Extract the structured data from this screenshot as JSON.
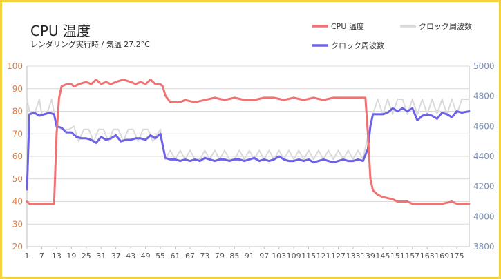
{
  "chart_data": {
    "type": "line",
    "title": "CPU 温度",
    "subtitle": "レンダリング実行時 / 気温 27.2°C",
    "x_ticks": [
      1,
      7,
      13,
      19,
      25,
      31,
      37,
      43,
      49,
      55,
      61,
      67,
      73,
      79,
      85,
      91,
      97,
      103,
      109,
      115,
      121,
      127,
      133,
      139,
      145,
      151,
      157,
      163,
      169,
      175
    ],
    "x_range": [
      1,
      180
    ],
    "y_left": {
      "min": 20,
      "max": 100,
      "ticks": [
        20,
        30,
        40,
        50,
        60,
        70,
        80,
        90,
        100
      ]
    },
    "y_right": {
      "min": 3800,
      "max": 5000,
      "ticks": [
        3800,
        4000,
        4200,
        4400,
        4600,
        4800,
        5000
      ]
    },
    "grid": true,
    "legend": {
      "placement": "top-right",
      "entries": [
        "CPU 温度",
        "クロック周波数",
        "クロック周波数"
      ]
    },
    "series": [
      {
        "name": "CPU 温度",
        "axis": "left",
        "color": "#f07272",
        "points": [
          [
            1,
            40
          ],
          [
            2,
            39
          ],
          [
            12,
            39
          ],
          [
            13,
            70
          ],
          [
            14,
            86
          ],
          [
            15,
            91
          ],
          [
            17,
            92
          ],
          [
            19,
            92
          ],
          [
            20,
            91
          ],
          [
            22,
            92
          ],
          [
            25,
            93
          ],
          [
            27,
            92
          ],
          [
            29,
            94
          ],
          [
            31,
            92
          ],
          [
            33,
            93
          ],
          [
            35,
            92
          ],
          [
            37,
            93
          ],
          [
            40,
            94
          ],
          [
            43,
            93
          ],
          [
            45,
            92
          ],
          [
            47,
            93
          ],
          [
            49,
            92
          ],
          [
            51,
            94
          ],
          [
            53,
            92
          ],
          [
            55,
            92
          ],
          [
            56,
            91
          ],
          [
            57,
            87
          ],
          [
            59,
            84
          ],
          [
            63,
            84
          ],
          [
            65,
            85
          ],
          [
            69,
            84
          ],
          [
            73,
            85
          ],
          [
            77,
            86
          ],
          [
            81,
            85
          ],
          [
            85,
            86
          ],
          [
            89,
            85
          ],
          [
            93,
            85
          ],
          [
            97,
            86
          ],
          [
            101,
            86
          ],
          [
            105,
            85
          ],
          [
            109,
            86
          ],
          [
            113,
            85
          ],
          [
            117,
            86
          ],
          [
            121,
            85
          ],
          [
            125,
            86
          ],
          [
            129,
            86
          ],
          [
            133,
            86
          ],
          [
            136,
            86
          ],
          [
            138,
            86
          ],
          [
            139,
            70
          ],
          [
            140,
            50
          ],
          [
            141,
            45
          ],
          [
            143,
            43
          ],
          [
            145,
            42
          ],
          [
            149,
            41
          ],
          [
            151,
            40
          ],
          [
            155,
            40
          ],
          [
            157,
            39
          ],
          [
            161,
            39
          ],
          [
            165,
            39
          ],
          [
            169,
            39
          ],
          [
            173,
            40
          ],
          [
            175,
            39
          ],
          [
            180,
            39
          ]
        ]
      },
      {
        "name": "クロック周波数",
        "axis": "right",
        "color": "#d9d9d9",
        "points": [
          [
            1,
            4780
          ],
          [
            2,
            4700
          ],
          [
            4,
            4680
          ],
          [
            6,
            4780
          ],
          [
            7,
            4680
          ],
          [
            9,
            4680
          ],
          [
            11,
            4780
          ],
          [
            13,
            4600
          ],
          [
            15,
            4580
          ],
          [
            18,
            4580
          ],
          [
            20,
            4600
          ],
          [
            22,
            4500
          ],
          [
            24,
            4580
          ],
          [
            26,
            4580
          ],
          [
            28,
            4500
          ],
          [
            30,
            4580
          ],
          [
            32,
            4580
          ],
          [
            34,
            4500
          ],
          [
            36,
            4580
          ],
          [
            38,
            4580
          ],
          [
            40,
            4500
          ],
          [
            42,
            4580
          ],
          [
            44,
            4580
          ],
          [
            46,
            4500
          ],
          [
            48,
            4580
          ],
          [
            50,
            4580
          ],
          [
            52,
            4500
          ],
          [
            55,
            4580
          ],
          [
            57,
            4380
          ],
          [
            59,
            4440
          ],
          [
            61,
            4380
          ],
          [
            63,
            4440
          ],
          [
            65,
            4380
          ],
          [
            67,
            4440
          ],
          [
            69,
            4380
          ],
          [
            71,
            4380
          ],
          [
            73,
            4440
          ],
          [
            75,
            4380
          ],
          [
            77,
            4440
          ],
          [
            79,
            4380
          ],
          [
            81,
            4440
          ],
          [
            83,
            4380
          ],
          [
            85,
            4380
          ],
          [
            87,
            4440
          ],
          [
            89,
            4380
          ],
          [
            91,
            4440
          ],
          [
            93,
            4380
          ],
          [
            95,
            4440
          ],
          [
            97,
            4380
          ],
          [
            99,
            4440
          ],
          [
            101,
            4380
          ],
          [
            103,
            4440
          ],
          [
            105,
            4380
          ],
          [
            107,
            4440
          ],
          [
            109,
            4380
          ],
          [
            111,
            4440
          ],
          [
            113,
            4380
          ],
          [
            115,
            4440
          ],
          [
            117,
            4380
          ],
          [
            119,
            4440
          ],
          [
            121,
            4380
          ],
          [
            123,
            4440
          ],
          [
            125,
            4380
          ],
          [
            127,
            4440
          ],
          [
            129,
            4380
          ],
          [
            131,
            4440
          ],
          [
            133,
            4380
          ],
          [
            135,
            4440
          ],
          [
            137,
            4380
          ],
          [
            139,
            4540
          ],
          [
            141,
            4680
          ],
          [
            143,
            4780
          ],
          [
            145,
            4680
          ],
          [
            147,
            4780
          ],
          [
            149,
            4680
          ],
          [
            151,
            4780
          ],
          [
            153,
            4780
          ],
          [
            155,
            4680
          ],
          [
            157,
            4780
          ],
          [
            159,
            4680
          ],
          [
            161,
            4780
          ],
          [
            163,
            4680
          ],
          [
            165,
            4780
          ],
          [
            167,
            4680
          ],
          [
            169,
            4780
          ],
          [
            171,
            4680
          ],
          [
            173,
            4780
          ],
          [
            175,
            4680
          ],
          [
            177,
            4780
          ],
          [
            180,
            4780
          ]
        ]
      },
      {
        "name": "クロック周波数",
        "axis": "right",
        "color": "#6b62e6",
        "points": [
          [
            1,
            4180
          ],
          [
            2,
            4680
          ],
          [
            4,
            4690
          ],
          [
            6,
            4670
          ],
          [
            8,
            4680
          ],
          [
            10,
            4690
          ],
          [
            12,
            4680
          ],
          [
            13,
            4600
          ],
          [
            15,
            4590
          ],
          [
            17,
            4560
          ],
          [
            19,
            4560
          ],
          [
            21,
            4530
          ],
          [
            23,
            4520
          ],
          [
            25,
            4520
          ],
          [
            27,
            4510
          ],
          [
            29,
            4490
          ],
          [
            31,
            4530
          ],
          [
            33,
            4510
          ],
          [
            35,
            4520
          ],
          [
            37,
            4540
          ],
          [
            39,
            4500
          ],
          [
            41,
            4510
          ],
          [
            43,
            4510
          ],
          [
            45,
            4520
          ],
          [
            47,
            4520
          ],
          [
            49,
            4510
          ],
          [
            51,
            4540
          ],
          [
            53,
            4520
          ],
          [
            55,
            4550
          ],
          [
            57,
            4390
          ],
          [
            59,
            4380
          ],
          [
            61,
            4380
          ],
          [
            63,
            4370
          ],
          [
            65,
            4380
          ],
          [
            67,
            4370
          ],
          [
            69,
            4380
          ],
          [
            71,
            4370
          ],
          [
            73,
            4390
          ],
          [
            75,
            4380
          ],
          [
            77,
            4370
          ],
          [
            79,
            4380
          ],
          [
            81,
            4380
          ],
          [
            83,
            4370
          ],
          [
            85,
            4380
          ],
          [
            87,
            4380
          ],
          [
            89,
            4370
          ],
          [
            91,
            4380
          ],
          [
            93,
            4390
          ],
          [
            95,
            4370
          ],
          [
            97,
            4380
          ],
          [
            99,
            4370
          ],
          [
            101,
            4380
          ],
          [
            103,
            4400
          ],
          [
            105,
            4380
          ],
          [
            107,
            4370
          ],
          [
            109,
            4370
          ],
          [
            111,
            4380
          ],
          [
            113,
            4370
          ],
          [
            115,
            4380
          ],
          [
            117,
            4360
          ],
          [
            119,
            4370
          ],
          [
            121,
            4380
          ],
          [
            123,
            4370
          ],
          [
            125,
            4360
          ],
          [
            127,
            4370
          ],
          [
            129,
            4380
          ],
          [
            131,
            4370
          ],
          [
            133,
            4370
          ],
          [
            135,
            4380
          ],
          [
            137,
            4370
          ],
          [
            139,
            4450
          ],
          [
            140,
            4600
          ],
          [
            141,
            4680
          ],
          [
            143,
            4680
          ],
          [
            145,
            4680
          ],
          [
            147,
            4690
          ],
          [
            149,
            4720
          ],
          [
            151,
            4700
          ],
          [
            153,
            4720
          ],
          [
            155,
            4700
          ],
          [
            157,
            4720
          ],
          [
            159,
            4640
          ],
          [
            161,
            4670
          ],
          [
            163,
            4680
          ],
          [
            165,
            4670
          ],
          [
            167,
            4650
          ],
          [
            169,
            4690
          ],
          [
            171,
            4680
          ],
          [
            173,
            4660
          ],
          [
            175,
            4700
          ],
          [
            177,
            4690
          ],
          [
            180,
            4700
          ]
        ]
      }
    ]
  }
}
